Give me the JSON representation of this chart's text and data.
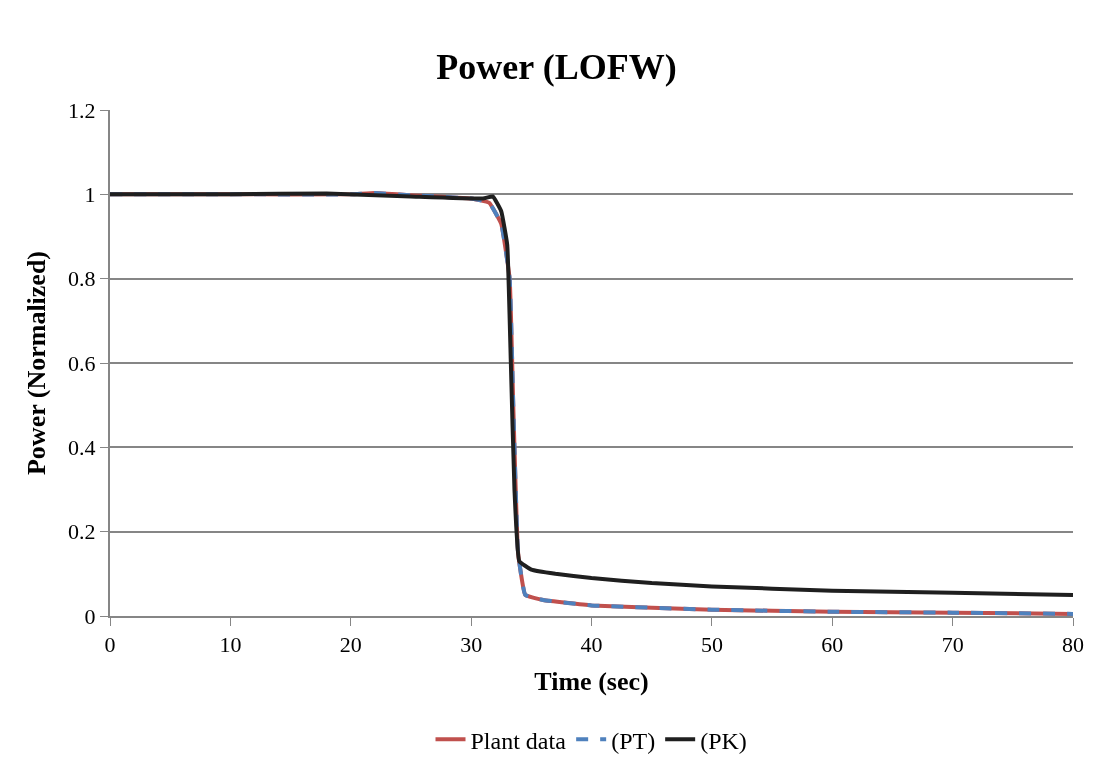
{
  "chart_data": {
    "type": "line",
    "title": "Power (LOFW)",
    "xlabel": "Time (sec)",
    "ylabel": "Power (Normalized)",
    "xlim": [
      0,
      80
    ],
    "xticks": [
      0,
      10,
      20,
      30,
      40,
      50,
      60,
      70,
      80
    ],
    "ylim": [
      0,
      1.2
    ],
    "yticks": [
      0,
      0.2,
      0.4,
      0.6,
      0.8,
      1,
      1.2
    ],
    "grid": "y",
    "legend": "bottom",
    "series": [
      {
        "name": "Plant data",
        "color": "#c0504d",
        "line_style": "solid",
        "x": [
          0,
          10,
          20,
          22,
          25,
          30,
          31.5,
          32.5,
          33.2,
          33.5,
          33.9,
          34.5,
          36,
          40,
          50,
          60,
          70,
          80
        ],
        "values": [
          1,
          1,
          1,
          1.003,
          0.998,
          0.99,
          0.98,
          0.93,
          0.8,
          0.5,
          0.15,
          0.05,
          0.038,
          0.025,
          0.015,
          0.01,
          0.008,
          0.005
        ]
      },
      {
        "name": "(PT)",
        "color": "#4f81bd",
        "line_style": "dashed",
        "x": [
          0,
          10,
          20,
          22,
          25,
          30,
          31.5,
          32.5,
          33.2,
          33.5,
          33.9,
          34.5,
          36,
          40,
          50,
          60,
          70,
          80
        ],
        "values": [
          1,
          1,
          1,
          1.003,
          0.998,
          0.99,
          0.98,
          0.93,
          0.8,
          0.5,
          0.15,
          0.05,
          0.038,
          0.025,
          0.015,
          0.01,
          0.008,
          0.005
        ]
      },
      {
        "name": "(PK)",
        "color": "#1f1f1f",
        "line_style": "solid",
        "x": [
          0,
          10,
          18,
          25,
          31,
          31.8,
          32.5,
          33,
          33.3,
          33.6,
          34,
          35,
          37,
          40,
          45,
          50,
          60,
          70,
          80
        ],
        "values": [
          1,
          1,
          1.002,
          0.995,
          0.99,
          0.995,
          0.96,
          0.88,
          0.6,
          0.3,
          0.13,
          0.11,
          0.1,
          0.09,
          0.078,
          0.07,
          0.06,
          0.055,
          0.05
        ]
      }
    ]
  }
}
